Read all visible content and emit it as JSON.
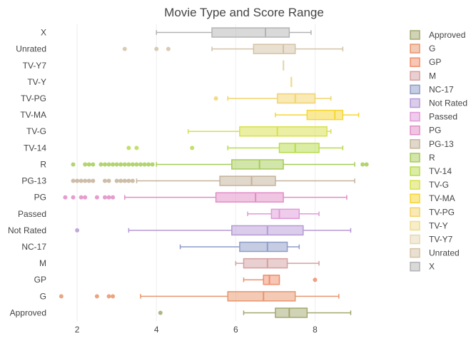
{
  "chart_data": {
    "type": "box",
    "orientation": "horizontal",
    "title": "Movie Type and Score Range",
    "xlabel": "",
    "ylabel": "",
    "xlim": [
      1.35,
      9.45
    ],
    "xticks": [
      2,
      4,
      6,
      8
    ],
    "grid": true,
    "legend": {
      "position": "right"
    },
    "series": [
      {
        "name": "Approved",
        "color": "#a3a86e",
        "min": 6.2,
        "q1": 7.0,
        "median": 7.35,
        "q3": 7.8,
        "max": 8.9,
        "outliers": [
          4.1
        ]
      },
      {
        "name": "G",
        "color": "#e8956b",
        "min": 3.6,
        "q1": 5.8,
        "median": 6.7,
        "q3": 7.5,
        "max": 8.6,
        "outliers": [
          1.6,
          2.5,
          2.8,
          2.9
        ]
      },
      {
        "name": "GP",
        "color": "#ef8e6c",
        "min": 6.2,
        "q1": 6.7,
        "median": 6.85,
        "q3": 7.1,
        "max": 7.1,
        "outliers": [
          8.0
        ]
      },
      {
        "name": "M",
        "color": "#d4a0a0",
        "min": 6.0,
        "q1": 6.2,
        "median": 6.8,
        "q3": 7.3,
        "max": 8.1,
        "outliers": []
      },
      {
        "name": "NC-17",
        "color": "#8e9cc8",
        "min": 4.6,
        "q1": 6.1,
        "median": 6.8,
        "q3": 7.3,
        "max": 7.6,
        "outliers": []
      },
      {
        "name": "Not Rated",
        "color": "#b69ad6",
        "min": 3.3,
        "q1": 5.9,
        "median": 6.8,
        "q3": 7.7,
        "max": 8.9,
        "outliers": [
          2.0
        ]
      },
      {
        "name": "Passed",
        "color": "#e09ad9",
        "min": 6.3,
        "q1": 6.9,
        "median": 7.1,
        "q3": 7.6,
        "max": 8.1,
        "outliers": []
      },
      {
        "name": "PG",
        "color": "#e28cc6",
        "min": 3.2,
        "q1": 5.5,
        "median": 6.5,
        "q3": 7.2,
        "max": 8.8,
        "outliers": [
          1.7,
          1.9,
          2.1,
          2.2,
          2.5,
          2.7,
          2.8,
          2.9
        ]
      },
      {
        "name": "PG-13",
        "color": "#c4b29a",
        "min": 3.5,
        "q1": 5.6,
        "median": 6.4,
        "q3": 7.0,
        "max": 9.0,
        "outliers": [
          1.9,
          2.0,
          2.1,
          2.2,
          2.3,
          2.4,
          2.7,
          2.8,
          3.0,
          3.1,
          3.2,
          3.3,
          3.4
        ]
      },
      {
        "name": "R",
        "color": "#a6cc57",
        "min": 4.0,
        "q1": 5.9,
        "median": 6.6,
        "q3": 7.2,
        "max": 9.0,
        "outliers": [
          1.9,
          2.2,
          2.3,
          2.4,
          2.6,
          2.7,
          2.8,
          2.9,
          3.0,
          3.1,
          3.2,
          3.3,
          3.4,
          3.5,
          3.6,
          3.7,
          3.8,
          3.9,
          9.2,
          9.3
        ]
      },
      {
        "name": "TV-14",
        "color": "#b7dc4a",
        "min": 5.8,
        "q1": 7.1,
        "median": 7.5,
        "q3": 8.1,
        "max": 8.7,
        "outliers": [
          3.3,
          3.5,
          4.9
        ]
      },
      {
        "name": "TV-G",
        "color": "#d8e04a",
        "min": 4.8,
        "q1": 6.1,
        "median": 7.05,
        "q3": 8.3,
        "max": 8.4,
        "outliers": []
      },
      {
        "name": "TV-MA",
        "color": "#f6d631",
        "min": 7.0,
        "q1": 7.8,
        "median": 8.5,
        "q3": 8.7,
        "max": 9.1,
        "outliers": []
      },
      {
        "name": "TV-PG",
        "color": "#f2d36c",
        "min": 5.8,
        "q1": 7.05,
        "median": 7.5,
        "q3": 8.0,
        "max": 8.4,
        "outliers": [
          5.5
        ]
      },
      {
        "name": "TV-Y",
        "color": "#f0dc90",
        "min": 7.4,
        "q1": 7.4,
        "median": 7.4,
        "q3": 7.4,
        "max": 7.4,
        "outliers": []
      },
      {
        "name": "TV-Y7",
        "color": "#e6d8b4",
        "min": 7.2,
        "q1": 7.2,
        "median": 7.2,
        "q3": 7.2,
        "max": 7.2,
        "outliers": []
      },
      {
        "name": "Unrated",
        "color": "#d4c2a6",
        "min": 5.4,
        "q1": 6.45,
        "median": 7.2,
        "q3": 7.5,
        "max": 8.7,
        "outliers": [
          3.2,
          4.0,
          4.3
        ]
      },
      {
        "name": "X",
        "color": "#b3b3b3",
        "min": 4.0,
        "q1": 5.4,
        "median": 6.75,
        "q3": 7.35,
        "max": 7.9,
        "outliers": []
      }
    ]
  }
}
